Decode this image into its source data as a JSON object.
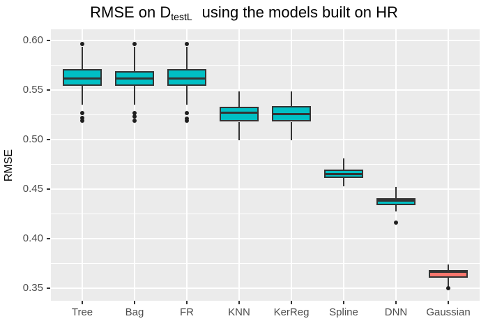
{
  "title": {
    "prefix": "RMSE on D",
    "subscript": "testL",
    "suffix": "using the models built on HR"
  },
  "chart_data": {
    "type": "boxplot",
    "title": "RMSE on D_testL using the models built on HR",
    "xlabel": "",
    "ylabel": "RMSE",
    "ylim": [
      0.337,
      0.6115
    ],
    "grid": true,
    "panel_bg": "#EBEBEB",
    "grid_color": "#FFFFFF",
    "box_line_color": "#333333",
    "y_major_ticks": [
      0.6,
      0.55,
      0.5,
      0.45,
      0.4,
      0.35
    ],
    "y_minor_ticks": [
      0.575,
      0.525,
      0.475,
      0.425,
      0.375
    ],
    "categories": [
      "Tree",
      "Bag",
      "FR",
      "KNN",
      "KerReg",
      "Spline",
      "DNN",
      "Gaussian"
    ],
    "series": [
      {
        "category": "Tree",
        "low": 0.535,
        "q1": 0.554,
        "median": 0.562,
        "q3": 0.571,
        "high": 0.594,
        "outliers": [
          0.597,
          0.527,
          0.522,
          0.519
        ],
        "fill": "#00BFC4"
      },
      {
        "category": "Bag",
        "low": 0.535,
        "q1": 0.554,
        "median": 0.562,
        "q3": 0.569,
        "high": 0.594,
        "outliers": [
          0.597,
          0.527,
          0.523,
          0.519
        ],
        "fill": "#00BFC4"
      },
      {
        "category": "FR",
        "low": 0.535,
        "q1": 0.554,
        "median": 0.562,
        "q3": 0.571,
        "high": 0.594,
        "outliers": [
          0.597,
          0.527,
          0.521,
          0.519
        ],
        "fill": "#00BFC4"
      },
      {
        "category": "KNN",
        "low": 0.499,
        "q1": 0.518,
        "median": 0.527,
        "q3": 0.533,
        "high": 0.549,
        "outliers": [],
        "fill": "#00BFC4"
      },
      {
        "category": "KerReg",
        "low": 0.499,
        "q1": 0.518,
        "median": 0.526,
        "q3": 0.534,
        "high": 0.549,
        "outliers": [],
        "fill": "#00BFC4"
      },
      {
        "category": "Spline",
        "low": 0.453,
        "q1": 0.461,
        "median": 0.465,
        "q3": 0.47,
        "high": 0.481,
        "outliers": [],
        "fill": "#00BFC4"
      },
      {
        "category": "DNN",
        "low": 0.427,
        "q1": 0.434,
        "median": 0.438,
        "q3": 0.441,
        "high": 0.452,
        "outliers": [
          0.416
        ],
        "fill": "#00BFC4"
      },
      {
        "category": "Gaussian",
        "low": 0.351,
        "q1": 0.36,
        "median": 0.366,
        "q3": 0.368,
        "high": 0.374,
        "outliers": [
          0.3495
        ],
        "fill": "#F8766D"
      }
    ]
  }
}
